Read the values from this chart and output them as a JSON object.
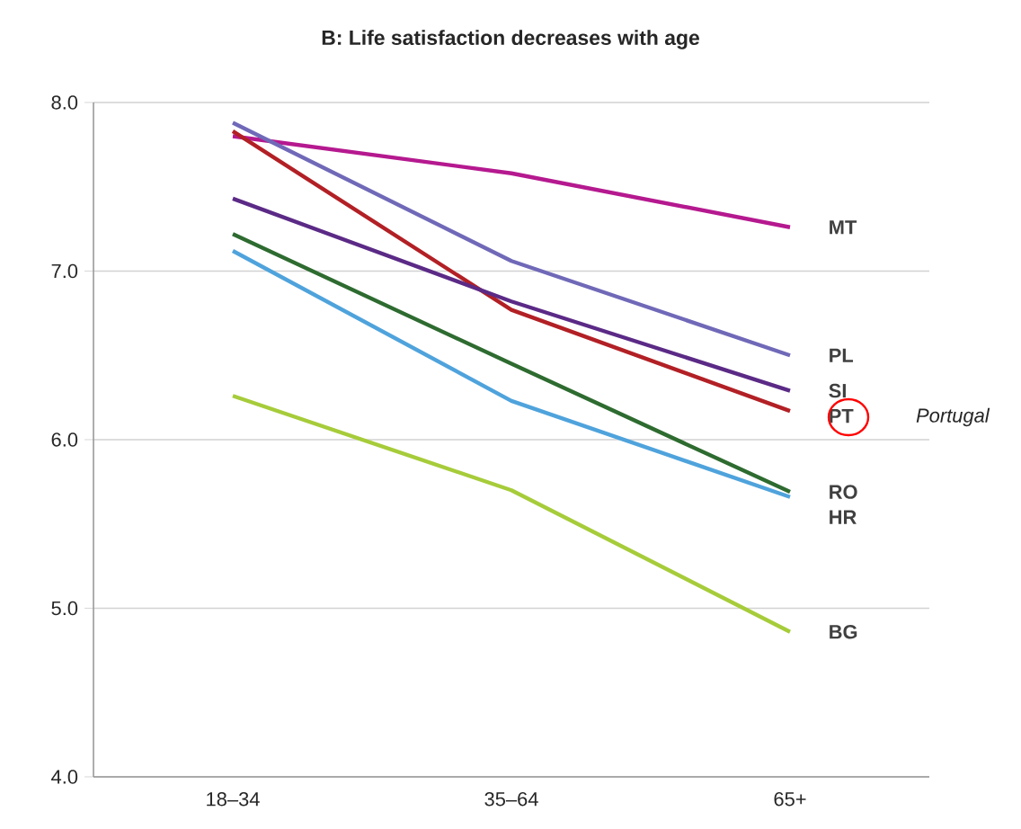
{
  "chart_data": {
    "type": "line",
    "title": "B: Life satisfaction decreases with age",
    "categories": [
      "18–34",
      "35–64",
      "65+"
    ],
    "series": [
      {
        "name": "MT",
        "color": "#b5198f",
        "values": [
          7.8,
          7.58,
          7.26
        ]
      },
      {
        "name": "PL",
        "color": "#7069b8",
        "values": [
          7.88,
          7.06,
          6.5
        ]
      },
      {
        "name": "PT",
        "color": "#b22025",
        "values": [
          7.83,
          6.77,
          6.17
        ]
      },
      {
        "name": "SI",
        "color": "#5b2a86",
        "values": [
          7.43,
          6.82,
          6.29
        ]
      },
      {
        "name": "RO",
        "color": "#2e6b30",
        "values": [
          7.22,
          6.45,
          5.69
        ]
      },
      {
        "name": "HR",
        "color": "#4fa3dc",
        "values": [
          7.12,
          6.23,
          5.66
        ]
      },
      {
        "name": "BG",
        "color": "#a6cc3a",
        "values": [
          6.26,
          5.7,
          4.86
        ]
      }
    ],
    "ylim": [
      4,
      8
    ],
    "yticks": [
      {
        "value": 4,
        "label": "4.0"
      },
      {
        "value": 5,
        "label": "5.0"
      },
      {
        "value": 6,
        "label": "6.0"
      },
      {
        "value": 7,
        "label": "7.0"
      },
      {
        "value": 8,
        "label": "8.0"
      }
    ],
    "grid": "y",
    "legend": false,
    "marker": "none",
    "line_style": "solid",
    "annotations": [
      "Portugal"
    ]
  }
}
